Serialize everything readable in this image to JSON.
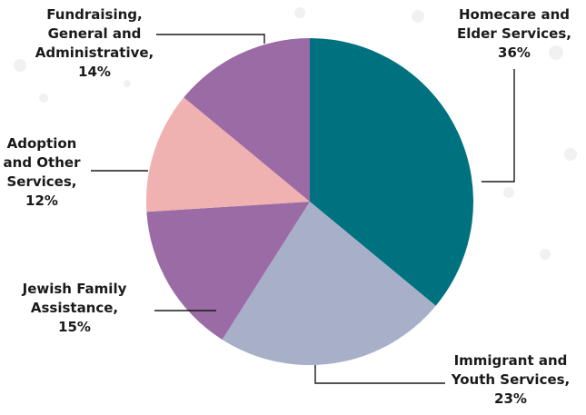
{
  "chart_data": {
    "type": "pie",
    "title": "",
    "slices": [
      {
        "label": [
          "Homecare and",
          "Elder Services,",
          "36%"
        ],
        "value": 36,
        "color": "#00727f"
      },
      {
        "label": [
          "Immigrant and",
          "Youth Services,",
          "23%"
        ],
        "value": 23,
        "color": "#a7b0c8"
      },
      {
        "label": [
          "Jewish Family",
          "Assistance,",
          "15%"
        ],
        "value": 15,
        "color": "#9b6ba5"
      },
      {
        "label": [
          "Adoption",
          "and Other",
          "Services,",
          "12%"
        ],
        "value": 12,
        "color": "#f0b2b0"
      },
      {
        "label": [
          "Fundraising,",
          "General and",
          "Administrative,",
          "14%"
        ],
        "value": 14,
        "color": "#9b6ba5"
      }
    ],
    "start": "12 o'clock",
    "direction": "clockwise"
  }
}
